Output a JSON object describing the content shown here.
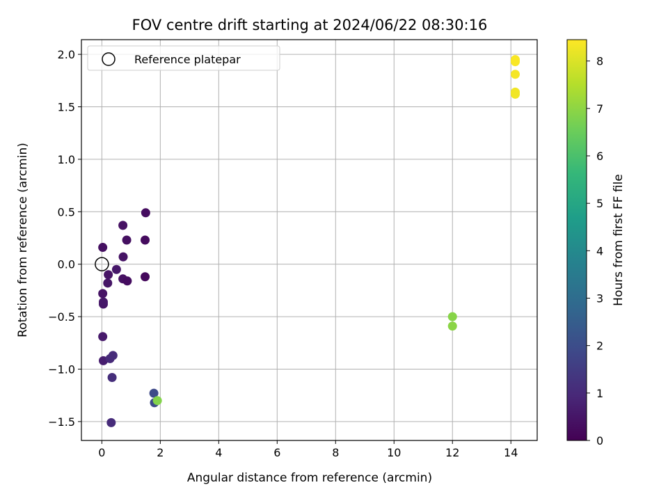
{
  "chart_data": {
    "type": "scatter",
    "title": "FOV centre drift starting at 2024/06/22 08:30:16",
    "xlabel": "Angular distance from reference (arcmin)",
    "ylabel": "Rotation from reference (arcmin)",
    "xlim": [
      -0.7,
      14.9
    ],
    "ylim": [
      -1.68,
      2.14
    ],
    "xticks": [
      0,
      2,
      4,
      6,
      8,
      10,
      12,
      14
    ],
    "xtick_labels": [
      "0",
      "2",
      "4",
      "6",
      "8",
      "10",
      "12",
      "14"
    ],
    "yticks": [
      -1.5,
      -1.0,
      -0.5,
      0.0,
      0.5,
      1.0,
      1.5,
      2.0
    ],
    "ytick_labels": [
      "−1.5",
      "−1.0",
      "−0.5",
      "0.0",
      "0.5",
      "1.0",
      "1.5",
      "2.0"
    ],
    "grid": true,
    "legend": {
      "location": "upper left",
      "entries": [
        "Reference platepar"
      ]
    },
    "reference_point": {
      "x": 0.0,
      "y": 0.0
    },
    "colorbar": {
      "label": "Hours from first FF file",
      "range": [
        0,
        8.45
      ],
      "ticks": [
        0,
        1,
        2,
        3,
        4,
        5,
        6,
        7,
        8
      ],
      "tick_labels": [
        "0",
        "1",
        "2",
        "3",
        "4",
        "5",
        "6",
        "7",
        "8"
      ],
      "colormap": "viridis",
      "colormap_stops": [
        "#440154",
        "#482878",
        "#3e4989",
        "#31688e",
        "#26828e",
        "#1f9e89",
        "#35b779",
        "#6ece58",
        "#b5de2b",
        "#fde725"
      ]
    },
    "points": [
      {
        "x": 0.03,
        "y": 0.16,
        "hours": 0.35
      },
      {
        "x": 0.03,
        "y": -0.28,
        "hours": 0.45
      },
      {
        "x": 0.05,
        "y": -0.38,
        "hours": 0.5
      },
      {
        "x": 0.05,
        "y": -0.36,
        "hours": 0.55
      },
      {
        "x": 0.03,
        "y": -0.69,
        "hours": 0.6
      },
      {
        "x": 0.05,
        "y": -0.92,
        "hours": 0.7
      },
      {
        "x": 0.22,
        "y": -0.1,
        "hours": 0.45
      },
      {
        "x": 0.2,
        "y": -0.18,
        "hours": 0.5
      },
      {
        "x": 0.5,
        "y": -0.05,
        "hours": 0.55
      },
      {
        "x": 0.72,
        "y": 0.37,
        "hours": 0.4
      },
      {
        "x": 0.73,
        "y": 0.07,
        "hours": 0.45
      },
      {
        "x": 0.72,
        "y": -0.14,
        "hours": 0.4
      },
      {
        "x": 0.85,
        "y": 0.23,
        "hours": 0.35
      },
      {
        "x": 0.87,
        "y": -0.16,
        "hours": 0.3
      },
      {
        "x": 1.5,
        "y": 0.49,
        "hours": 0.3
      },
      {
        "x": 1.48,
        "y": 0.23,
        "hours": 0.25
      },
      {
        "x": 1.48,
        "y": -0.12,
        "hours": 0.2
      },
      {
        "x": 0.28,
        "y": -0.9,
        "hours": 1.0
      },
      {
        "x": 0.38,
        "y": -0.87,
        "hours": 1.05
      },
      {
        "x": 0.35,
        "y": -1.08,
        "hours": 1.1
      },
      {
        "x": 0.32,
        "y": -1.51,
        "hours": 1.05
      },
      {
        "x": 1.78,
        "y": -1.23,
        "hours": 1.9
      },
      {
        "x": 1.8,
        "y": -1.32,
        "hours": 1.95
      },
      {
        "x": 1.9,
        "y": -1.3,
        "hours": 6.85
      },
      {
        "x": 12.0,
        "y": -0.5,
        "hours": 6.9
      },
      {
        "x": 12.0,
        "y": -0.59,
        "hours": 6.95
      },
      {
        "x": 14.15,
        "y": 1.95,
        "hours": 8.4
      },
      {
        "x": 14.15,
        "y": 1.93,
        "hours": 8.4
      },
      {
        "x": 14.15,
        "y": 1.81,
        "hours": 8.35
      },
      {
        "x": 14.15,
        "y": 1.64,
        "hours": 8.3
      },
      {
        "x": 14.15,
        "y": 1.62,
        "hours": 8.3
      }
    ]
  }
}
